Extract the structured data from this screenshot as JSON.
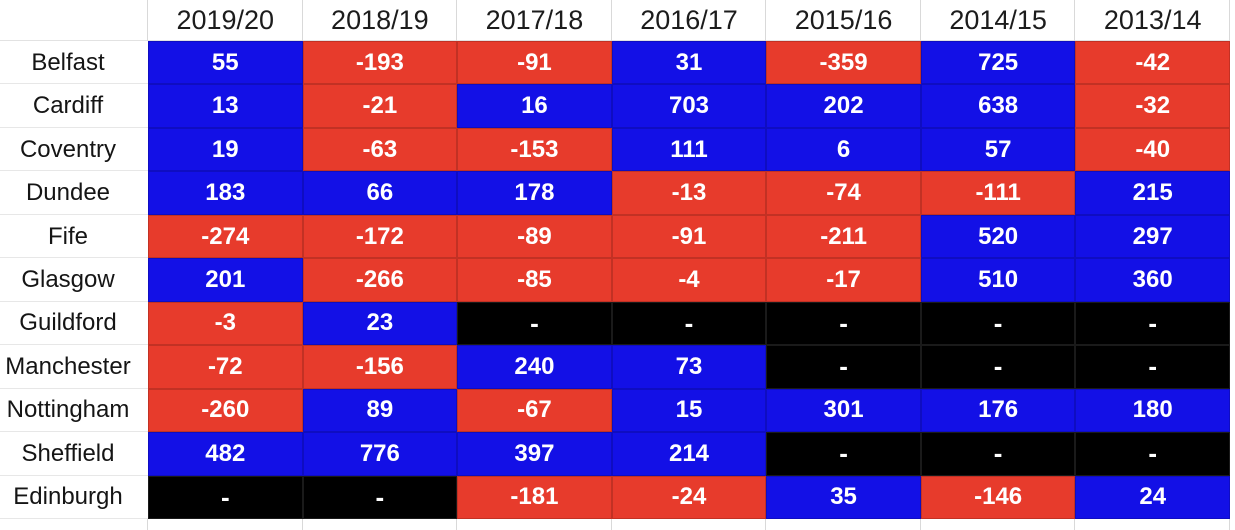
{
  "colors": {
    "positive": "#1310e6",
    "negative": "#e73b2c",
    "missing": "#000000",
    "gridline": "#d9d9d9",
    "value_text": "#ffffff",
    "header_text": "#1c1c1c"
  },
  "table": {
    "corner_label": "",
    "columns": [
      "2019/20",
      "2018/19",
      "2017/18",
      "2016/17",
      "2015/16",
      "2014/15",
      "2013/14"
    ],
    "rows": [
      {
        "label": "Belfast",
        "cells": [
          {
            "display": "55",
            "color": "positive"
          },
          {
            "display": "-193",
            "color": "negative"
          },
          {
            "display": "-91",
            "color": "negative"
          },
          {
            "display": "31",
            "color": "positive"
          },
          {
            "display": "-359",
            "color": "negative"
          },
          {
            "display": "725",
            "color": "positive"
          },
          {
            "display": "-42",
            "color": "negative"
          }
        ]
      },
      {
        "label": "Cardiff",
        "cells": [
          {
            "display": "13",
            "color": "positive"
          },
          {
            "display": "-21",
            "color": "negative"
          },
          {
            "display": "16",
            "color": "positive"
          },
          {
            "display": "703",
            "color": "positive"
          },
          {
            "display": "202",
            "color": "positive"
          },
          {
            "display": "638",
            "color": "positive"
          },
          {
            "display": "-32",
            "color": "negative"
          }
        ]
      },
      {
        "label": "Coventry",
        "cells": [
          {
            "display": "19",
            "color": "positive"
          },
          {
            "display": "-63",
            "color": "negative"
          },
          {
            "display": "-153",
            "color": "negative"
          },
          {
            "display": "111",
            "color": "positive"
          },
          {
            "display": "6",
            "color": "positive"
          },
          {
            "display": "57",
            "color": "positive"
          },
          {
            "display": "-40",
            "color": "negative"
          }
        ]
      },
      {
        "label": "Dundee",
        "cells": [
          {
            "display": "183",
            "color": "positive"
          },
          {
            "display": "66",
            "color": "positive"
          },
          {
            "display": "178",
            "color": "positive"
          },
          {
            "display": "-13",
            "color": "negative"
          },
          {
            "display": "-74",
            "color": "negative"
          },
          {
            "display": "-111",
            "color": "negative"
          },
          {
            "display": "215",
            "color": "positive"
          }
        ]
      },
      {
        "label": "Fife",
        "cells": [
          {
            "display": "-274",
            "color": "negative"
          },
          {
            "display": "-172",
            "color": "negative"
          },
          {
            "display": "-89",
            "color": "negative"
          },
          {
            "display": "-91",
            "color": "negative"
          },
          {
            "display": "-211",
            "color": "negative"
          },
          {
            "display": "520",
            "color": "positive"
          },
          {
            "display": "297",
            "color": "positive"
          }
        ]
      },
      {
        "label": "Glasgow",
        "cells": [
          {
            "display": "201",
            "color": "positive"
          },
          {
            "display": "-266",
            "color": "negative"
          },
          {
            "display": "-85",
            "color": "negative"
          },
          {
            "display": "-4",
            "color": "negative"
          },
          {
            "display": "-17",
            "color": "negative"
          },
          {
            "display": "510",
            "color": "positive"
          },
          {
            "display": "360",
            "color": "positive"
          }
        ]
      },
      {
        "label": "Guildford",
        "cells": [
          {
            "display": "-3",
            "color": "negative"
          },
          {
            "display": "23",
            "color": "positive"
          },
          {
            "display": "-",
            "color": "missing"
          },
          {
            "display": "-",
            "color": "missing"
          },
          {
            "display": "-",
            "color": "missing"
          },
          {
            "display": "-",
            "color": "missing"
          },
          {
            "display": "-",
            "color": "missing"
          }
        ]
      },
      {
        "label": "Manchester",
        "cells": [
          {
            "display": "-72",
            "color": "negative"
          },
          {
            "display": "-156",
            "color": "negative"
          },
          {
            "display": "240",
            "color": "positive"
          },
          {
            "display": "73",
            "color": "positive"
          },
          {
            "display": "-",
            "color": "missing"
          },
          {
            "display": "-",
            "color": "missing"
          },
          {
            "display": "-",
            "color": "missing"
          }
        ]
      },
      {
        "label": "Nottingham",
        "cells": [
          {
            "display": "-260",
            "color": "negative"
          },
          {
            "display": "89",
            "color": "positive"
          },
          {
            "display": "-67",
            "color": "negative"
          },
          {
            "display": "15",
            "color": "positive"
          },
          {
            "display": "301",
            "color": "positive"
          },
          {
            "display": "176",
            "color": "positive"
          },
          {
            "display": "180",
            "color": "positive"
          }
        ]
      },
      {
        "label": "Sheffield",
        "cells": [
          {
            "display": "482",
            "color": "positive"
          },
          {
            "display": "776",
            "color": "positive"
          },
          {
            "display": "397",
            "color": "positive"
          },
          {
            "display": "214",
            "color": "positive"
          },
          {
            "display": "-",
            "color": "missing"
          },
          {
            "display": "-",
            "color": "missing"
          },
          {
            "display": "-",
            "color": "missing"
          }
        ]
      },
      {
        "label": "Edinburgh",
        "cells": [
          {
            "display": "-",
            "color": "missing"
          },
          {
            "display": "-",
            "color": "missing"
          },
          {
            "display": "-181",
            "color": "negative"
          },
          {
            "display": "-24",
            "color": "negative"
          },
          {
            "display": "35",
            "color": "positive"
          },
          {
            "display": "-146",
            "color": "negative"
          },
          {
            "display": "24",
            "color": "positive"
          }
        ]
      }
    ]
  },
  "chart_data": {
    "type": "table",
    "title": "",
    "columns": [
      "2019/20",
      "2018/19",
      "2017/18",
      "2016/17",
      "2015/16",
      "2014/15",
      "2013/14"
    ],
    "rows": [
      {
        "label": "Belfast",
        "values": [
          55,
          -193,
          -91,
          31,
          -359,
          725,
          -42
        ]
      },
      {
        "label": "Cardiff",
        "values": [
          13,
          -21,
          16,
          703,
          202,
          638,
          -32
        ]
      },
      {
        "label": "Coventry",
        "values": [
          19,
          -63,
          -153,
          111,
          6,
          57,
          -40
        ]
      },
      {
        "label": "Dundee",
        "values": [
          183,
          66,
          178,
          -13,
          -74,
          -111,
          215
        ]
      },
      {
        "label": "Fife",
        "values": [
          -274,
          -172,
          -89,
          -91,
          -211,
          520,
          297
        ]
      },
      {
        "label": "Glasgow",
        "values": [
          201,
          -266,
          -85,
          -4,
          -17,
          510,
          360
        ]
      },
      {
        "label": "Guildford",
        "values": [
          -3,
          23,
          null,
          null,
          null,
          null,
          null
        ]
      },
      {
        "label": "Manchester",
        "values": [
          -72,
          -156,
          240,
          73,
          null,
          null,
          null
        ]
      },
      {
        "label": "Nottingham",
        "values": [
          -260,
          89,
          -67,
          15,
          301,
          176,
          180
        ]
      },
      {
        "label": "Sheffield",
        "values": [
          482,
          776,
          397,
          214,
          null,
          null,
          null
        ]
      },
      {
        "label": "Edinburgh",
        "values": [
          null,
          null,
          -181,
          -24,
          35,
          -146,
          24
        ]
      }
    ],
    "legend": {
      "positive_value": "blue cell (#1310e6)",
      "negative_value": "red cell (#e73b2c)",
      "missing_value": "black cell with dash (#000000)"
    },
    "layout": {
      "grid": "on",
      "header_row": "seasons",
      "first_column": "city labels"
    }
  }
}
